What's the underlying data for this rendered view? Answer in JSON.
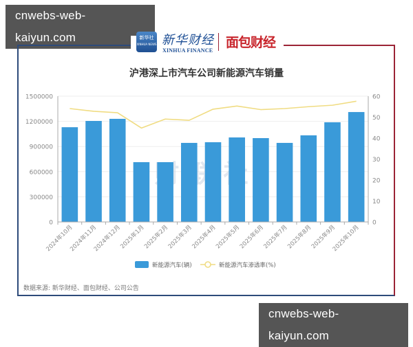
{
  "watermark": {
    "top": "cnwebs-web-kaiyun.com",
    "bottom": "cnwebs-web-kaiyun.com"
  },
  "header": {
    "badge_label": "新华社",
    "badge_sub": "XINHUA NEWS",
    "xinhua_cn": "新华财经",
    "xinhua_en": "XINHUA FINANCE",
    "mianbao": "面包财经"
  },
  "colors": {
    "bar": "#3a9ad9",
    "line": "#f0dc82",
    "frame_left": "#2d4a7a",
    "frame_right": "#9b2335"
  },
  "footer": {
    "source": "数据来源: 新华财经、面包财经、公司公告"
  },
  "chart_data": {
    "type": "bar",
    "title": "沪港深上市汽车公司新能源汽车销量",
    "categories": [
      "2024年10月",
      "2024年11月",
      "2024年12月",
      "2025年1月",
      "2025年2月",
      "2025年3月",
      "2025年4月",
      "2025年5月",
      "2025年6月",
      "2025年7月",
      "2025年8月",
      "2025年9月",
      "2025年10月"
    ],
    "series": [
      {
        "name": "新能源汽车(辆)",
        "type": "bar",
        "axis": "left",
        "values": [
          1130000,
          1205000,
          1230000,
          713000,
          713000,
          943000,
          951000,
          1008000,
          1000000,
          943000,
          1033000,
          1189000,
          1311000
        ]
      },
      {
        "name": "新能源汽车渗透率(%)",
        "type": "line",
        "axis": "right",
        "values": [
          54.1,
          52.8,
          52.1,
          44.8,
          49.1,
          48.5,
          53.8,
          55.3,
          53.6,
          54.1,
          55.0,
          55.7,
          57.6
        ]
      }
    ],
    "y_left": {
      "ylim": [
        0,
        1500000
      ],
      "ticks": [
        "0",
        "300000",
        "600000",
        "900000",
        "1200000",
        "1500000"
      ]
    },
    "y_right": {
      "ylim": [
        0,
        60
      ],
      "ticks": [
        "0",
        "10",
        "20",
        "30",
        "40",
        "50",
        "60"
      ]
    },
    "xlabel": "",
    "ylabel": "",
    "grid": true,
    "legend_position": "bottom",
    "watermark_text": "财联社"
  }
}
